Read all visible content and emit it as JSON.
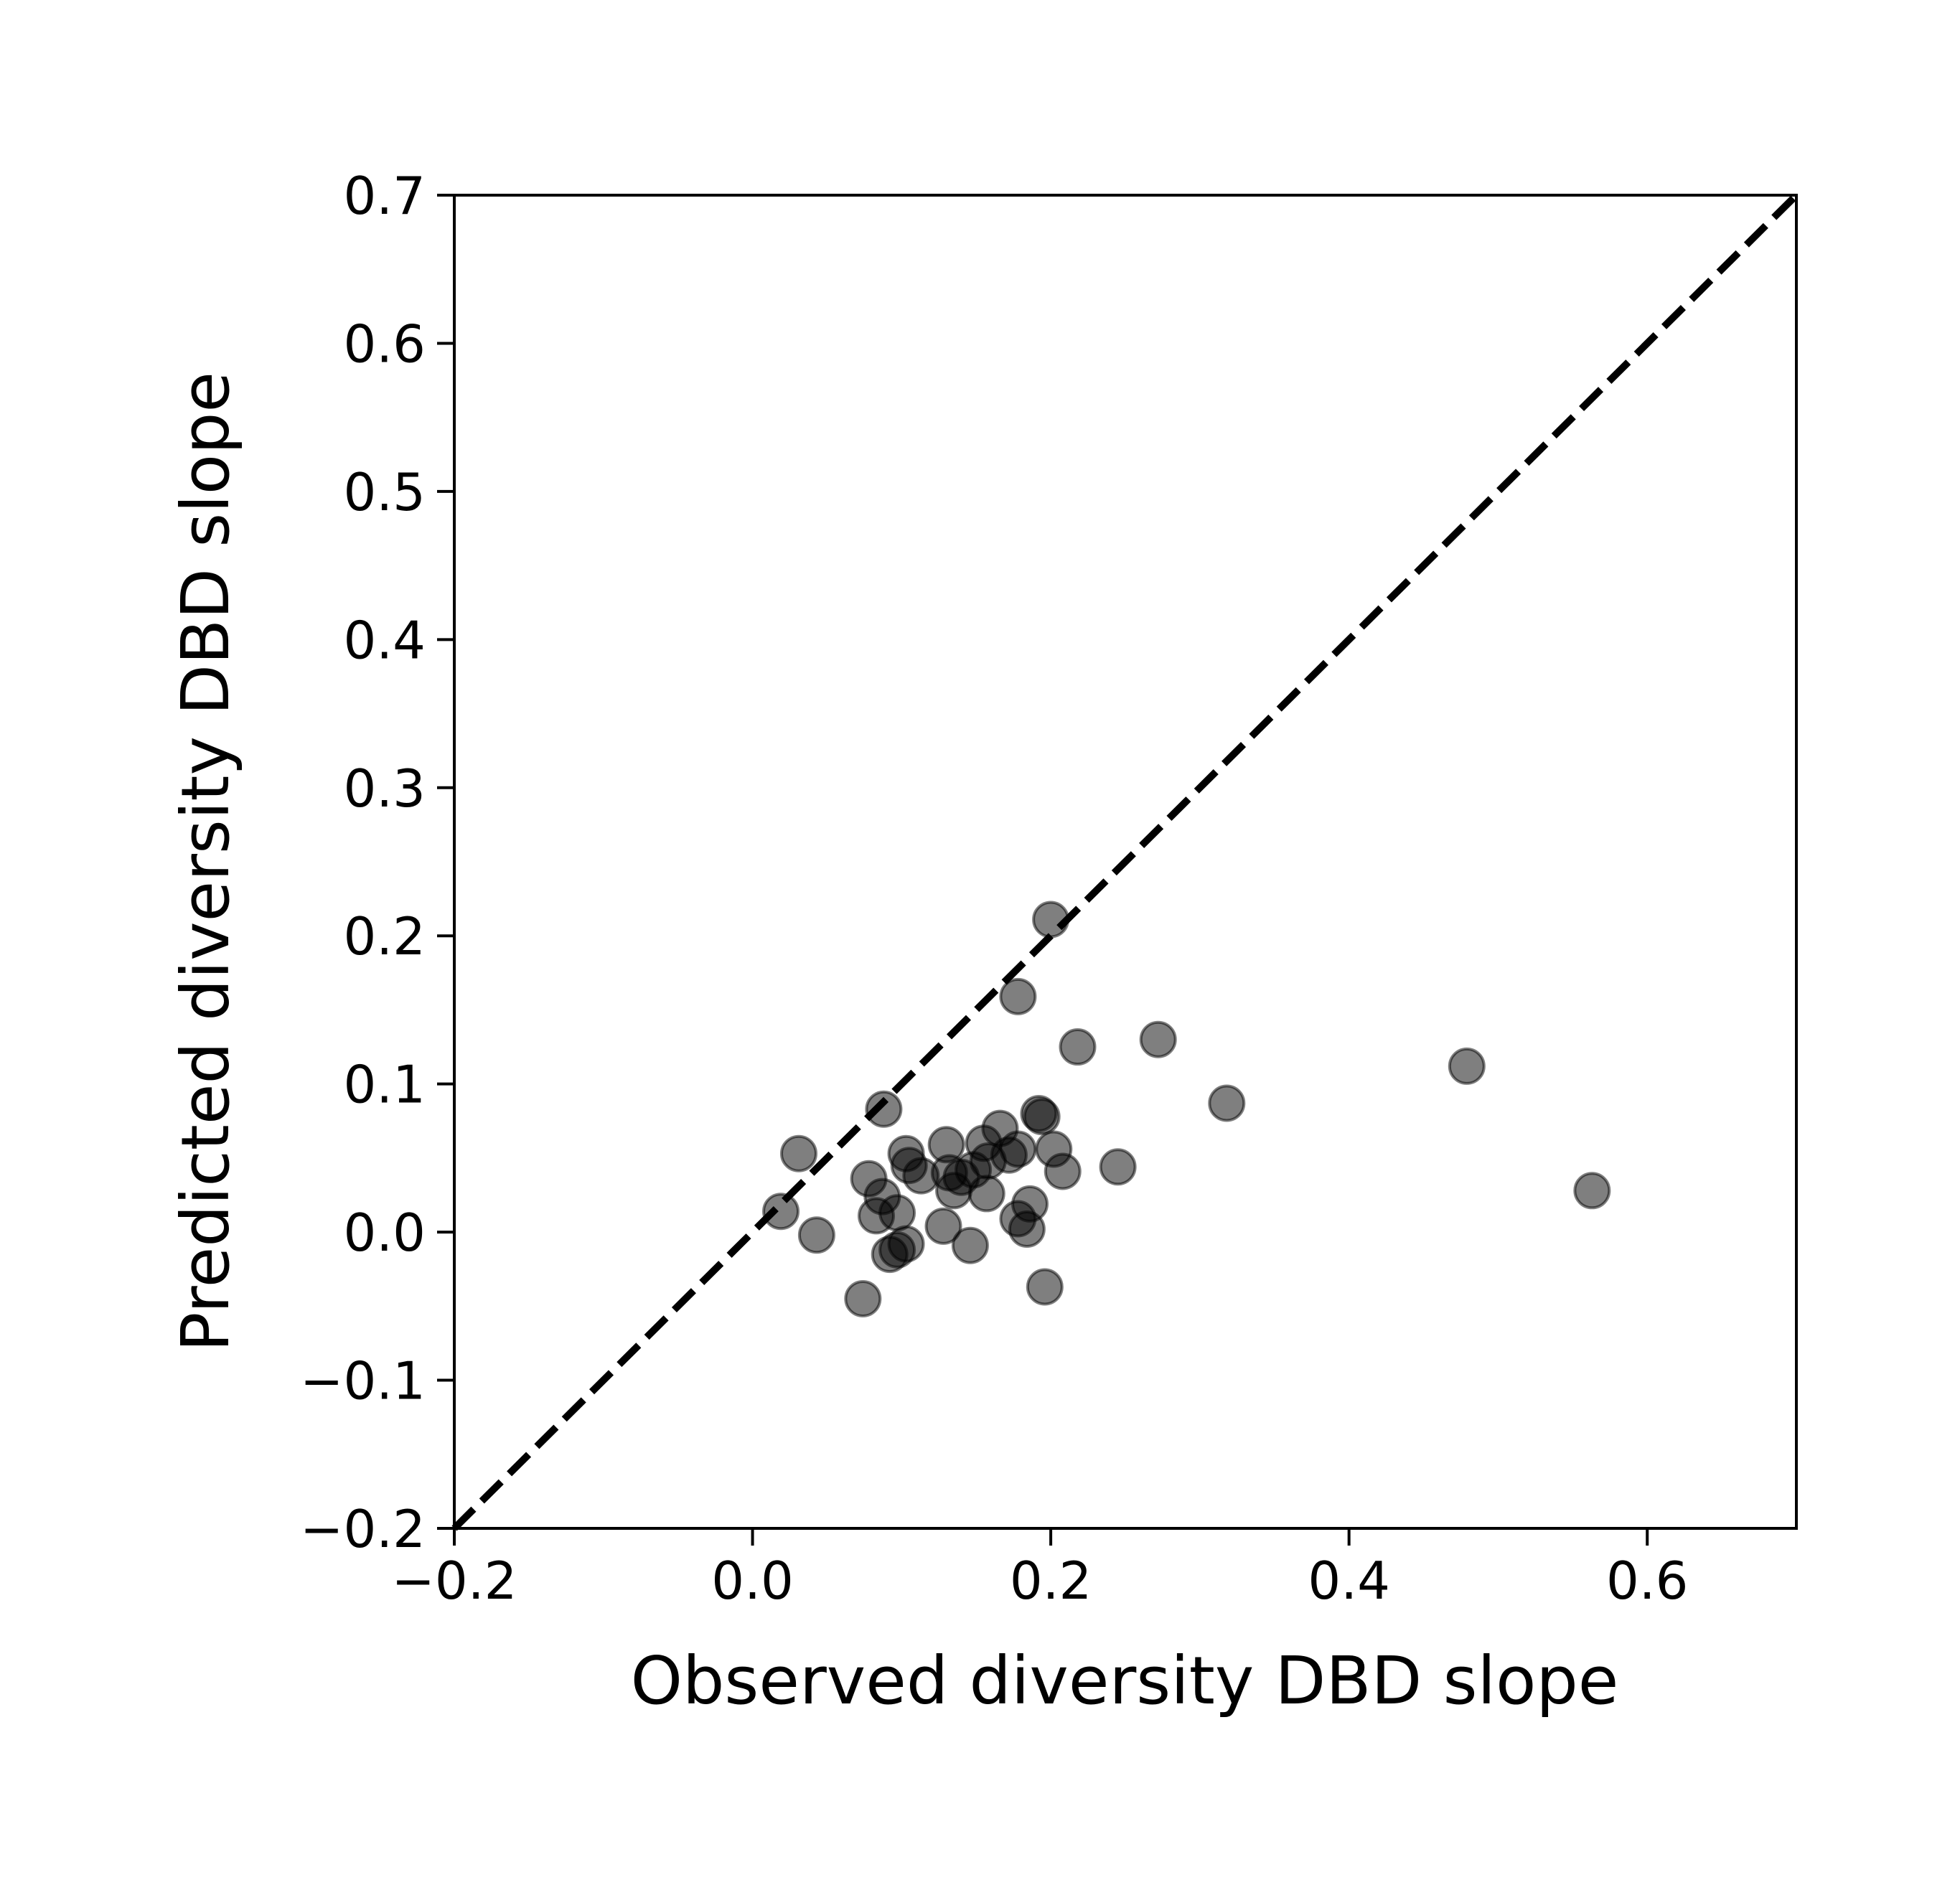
{
  "chart_data": {
    "type": "scatter",
    "title": "",
    "xlabel": "Observed diversity DBD slope",
    "ylabel": "Predicted diversity DBD slope",
    "xlim": [
      -0.2,
      0.7
    ],
    "ylim": [
      -0.2,
      0.7
    ],
    "xticks": [
      -0.2,
      0.0,
      0.2,
      0.4,
      0.6
    ],
    "xtick_labels": [
      "−0.2",
      "0.0",
      "0.2",
      "0.4",
      "0.6"
    ],
    "yticks": [
      -0.2,
      -0.1,
      0.0,
      0.1,
      0.2,
      0.3,
      0.4,
      0.5,
      0.6,
      0.7
    ],
    "ytick_labels": [
      "−0.2",
      "−0.1",
      "0.0",
      "0.1",
      "0.2",
      "0.3",
      "0.4",
      "0.5",
      "0.6",
      "0.7"
    ],
    "grid": false,
    "legend": "none",
    "reference_line": {
      "style": "dashed",
      "color": "#000000",
      "from": [
        -0.2,
        -0.2
      ],
      "to": [
        0.7,
        0.7
      ]
    },
    "marker": {
      "color": "#000000",
      "opacity": 0.5
    },
    "points": [
      {
        "x": 0.2,
        "y": 0.211
      },
      {
        "x": 0.178,
        "y": 0.159
      },
      {
        "x": 0.218,
        "y": 0.125
      },
      {
        "x": 0.272,
        "y": 0.13
      },
      {
        "x": 0.479,
        "y": 0.112
      },
      {
        "x": 0.318,
        "y": 0.087
      },
      {
        "x": 0.563,
        "y": 0.028
      },
      {
        "x": 0.088,
        "y": 0.083
      },
      {
        "x": 0.192,
        "y": 0.08
      },
      {
        "x": 0.194,
        "y": 0.078
      },
      {
        "x": 0.166,
        "y": 0.07
      },
      {
        "x": 0.155,
        "y": 0.06
      },
      {
        "x": 0.13,
        "y": 0.059
      },
      {
        "x": 0.178,
        "y": 0.056
      },
      {
        "x": 0.202,
        "y": 0.056
      },
      {
        "x": 0.031,
        "y": 0.053
      },
      {
        "x": 0.103,
        "y": 0.053
      },
      {
        "x": 0.172,
        "y": 0.052
      },
      {
        "x": 0.158,
        "y": 0.048
      },
      {
        "x": 0.105,
        "y": 0.045
      },
      {
        "x": 0.245,
        "y": 0.044
      },
      {
        "x": 0.148,
        "y": 0.042
      },
      {
        "x": 0.208,
        "y": 0.041
      },
      {
        "x": 0.132,
        "y": 0.04
      },
      {
        "x": 0.113,
        "y": 0.038
      },
      {
        "x": 0.14,
        "y": 0.037
      },
      {
        "x": 0.078,
        "y": 0.036
      },
      {
        "x": 0.135,
        "y": 0.028
      },
      {
        "x": 0.157,
        "y": 0.026
      },
      {
        "x": 0.087,
        "y": 0.024
      },
      {
        "x": 0.186,
        "y": 0.019
      },
      {
        "x": 0.019,
        "y": 0.014
      },
      {
        "x": 0.097,
        "y": 0.013
      },
      {
        "x": 0.083,
        "y": 0.011
      },
      {
        "x": 0.178,
        "y": 0.009
      },
      {
        "x": 0.128,
        "y": 0.004
      },
      {
        "x": 0.184,
        "y": 0.002
      },
      {
        "x": 0.043,
        "y": -0.002
      },
      {
        "x": 0.103,
        "y": -0.008
      },
      {
        "x": 0.146,
        "y": -0.009
      },
      {
        "x": 0.097,
        "y": -0.012
      },
      {
        "x": 0.092,
        "y": -0.015
      },
      {
        "x": 0.196,
        "y": -0.037
      },
      {
        "x": 0.074,
        "y": -0.045
      }
    ]
  }
}
